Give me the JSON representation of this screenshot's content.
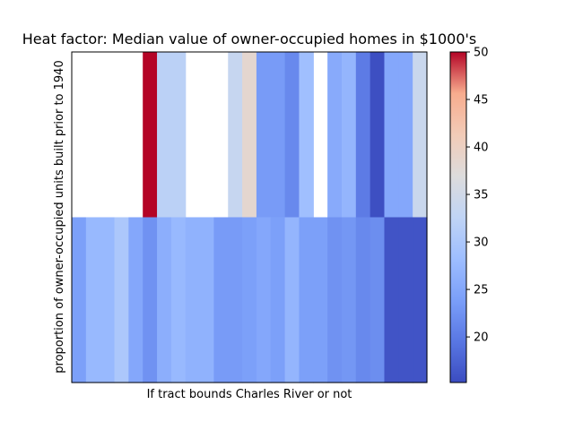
{
  "chart_data": {
    "type": "heatmap",
    "title": "Heat factor: Median value of owner-occupied homes in $1000's",
    "xlabel": "If tract bounds Charles River or not",
    "ylabel": "proportion of owner-occupied units built prior to 1940",
    "colormap": "coolwarm",
    "colorbar": {
      "min": 15.2,
      "max": 50,
      "ticks": [
        20,
        25,
        30,
        35,
        40,
        45,
        50
      ],
      "tick_labels": [
        "20",
        "25",
        "30",
        "35",
        "40",
        "45",
        "50"
      ]
    },
    "x_ticks_visible": false,
    "y_ticks_visible": false,
    "rows": [
      "upper",
      "lower"
    ],
    "columns": 25,
    "values": [
      [
        null,
        null,
        null,
        null,
        null,
        50.0,
        32.0,
        32.0,
        null,
        null,
        null,
        33.5,
        38.5,
        23.5,
        23.5,
        21.5,
        28.5,
        null,
        25.5,
        27.0,
        20.0,
        15.5,
        25.0,
        25.0,
        34.0
      ],
      [
        24.0,
        27.5,
        27.5,
        30.0,
        25.0,
        22.5,
        26.0,
        27.5,
        26.5,
        26.5,
        23.5,
        23.5,
        24.0,
        25.0,
        24.0,
        27.0,
        24.0,
        24.0,
        22.5,
        23.0,
        21.5,
        22.0,
        16.0,
        16.0,
        16.0
      ]
    ]
  }
}
